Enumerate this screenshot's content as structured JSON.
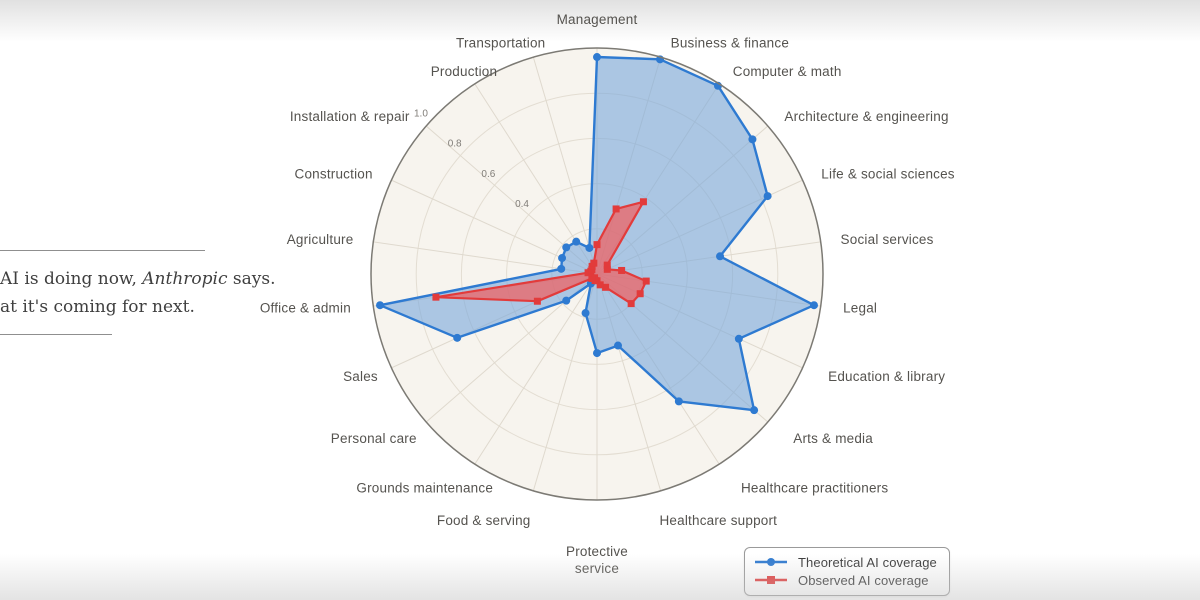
{
  "caption": {
    "line1_pre": "AI is doing now, ",
    "line1_italic": "Anthropic",
    "line1_post": " says.",
    "line2": "at it's coming for next."
  },
  "legend": {
    "items": [
      {
        "label": "Theoretical AI coverage",
        "color": "#2e7ad1",
        "marker": "circle"
      },
      {
        "label": "Observed AI coverage",
        "color": "#e23b3b",
        "marker": "square"
      }
    ]
  },
  "chart_data": {
    "type": "radar",
    "title": "",
    "categories": [
      "Management",
      "Business & finance",
      "Computer & math",
      "Architecture & engineering",
      "Life & social sciences",
      "Social services",
      "Legal",
      "Education & library",
      "Arts & media",
      "Healthcare practitioners",
      "Healthcare support",
      "Protective service",
      "Food & serving",
      "Grounds maintenance",
      "Personal care",
      "Sales",
      "Office & admin",
      "Agriculture",
      "Construction",
      "Installation & repair",
      "Production",
      "Transportation"
    ],
    "series": [
      {
        "name": "Theoretical AI coverage",
        "marker": "circle",
        "line_color": "#2e7ad1",
        "fill_color": "rgba(125,170,220,0.62)",
        "values": [
          0.96,
          0.99,
          0.99,
          0.91,
          0.83,
          0.55,
          0.97,
          0.69,
          0.92,
          0.67,
          0.33,
          0.35,
          0.18,
          0.05,
          0.18,
          0.68,
          0.97,
          0.16,
          0.17,
          0.18,
          0.17,
          0.12
        ]
      },
      {
        "name": "Observed AI coverage",
        "marker": "square",
        "line_color": "#e23b3b",
        "fill_color": "rgba(240,95,95,0.72)",
        "values": [
          0.13,
          0.3,
          0.38,
          0.06,
          0.05,
          0.11,
          0.22,
          0.21,
          0.2,
          0.07,
          0.05,
          0.03,
          0.03,
          0.02,
          0.03,
          0.29,
          0.72,
          0.04,
          0.03,
          0.03,
          0.04,
          0.05
        ]
      }
    ],
    "radial_tick_labels": [
      "1.0",
      "0.8",
      "0.6",
      "0.4"
    ],
    "rlim": [
      0,
      1.0
    ],
    "grid": true,
    "grid_ring_step": 0.2,
    "radial_tick_axis": "Installation & repair",
    "legend_position": "bottom-right",
    "colors": {
      "plot_background": "#f7f4ee",
      "ring_line": "#e3ddd2",
      "spoke_line": "#dfd9ce",
      "outer_circle": "#7c7a74",
      "category_label": "#55534f",
      "tick_label": "#807d78"
    }
  }
}
